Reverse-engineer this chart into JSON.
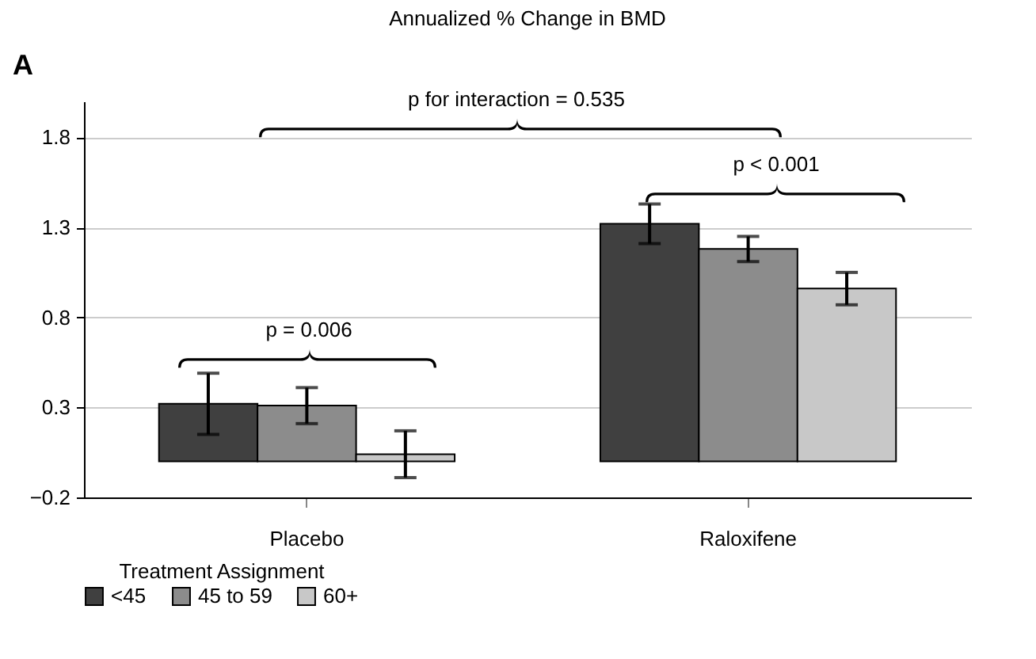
{
  "chart_data": {
    "type": "bar",
    "title": "Annualized % Change in BMD",
    "legend_title": "Treatment Assignment",
    "xlabel": null,
    "categories": [
      "Placebo",
      "Raloxifene"
    ],
    "series": [
      {
        "name": "<45",
        "color": "#404040",
        "values": [
          0.32,
          1.32
        ],
        "errors": [
          0.17,
          0.11
        ]
      },
      {
        "name": "45 to 59",
        "color": "#8c8c8c",
        "values": [
          0.31,
          1.18
        ],
        "errors": [
          0.1,
          0.07
        ]
      },
      {
        "name": "60+",
        "color": "#c8c8c8",
        "values": [
          0.04,
          0.96
        ],
        "errors": [
          0.13,
          0.09
        ]
      }
    ],
    "ylim": [
      -0.2,
      2.0
    ],
    "yticks": [
      -0.2,
      0.3,
      0.8,
      1.3,
      1.8
    ],
    "grid": "y",
    "legend": "bottom",
    "annotations": [
      "A",
      "p for interaction = 0.535",
      "p = 0.006",
      "p < 0.001"
    ]
  }
}
